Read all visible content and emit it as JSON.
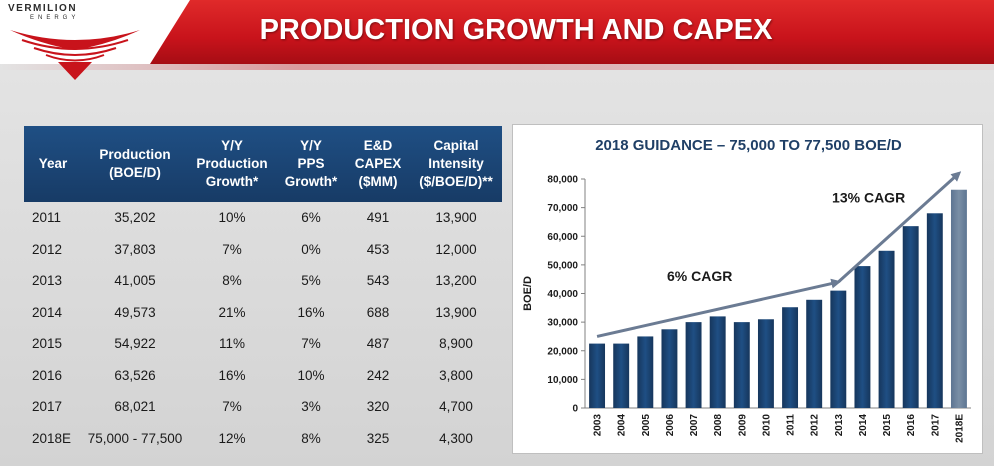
{
  "header": {
    "logo_line1": "VERMILION",
    "logo_line2": "ENERGY",
    "title": "PRODUCTION GROWTH AND CAPEX"
  },
  "table": {
    "columns": [
      "Year",
      "Production\n(BOE/D)",
      "Y/Y\nProduction\nGrowth*",
      "Y/Y\nPPS\nGrowth*",
      "E&D\nCAPEX\n($MM)",
      "Capital\nIntensity\n($/BOE/D)**"
    ],
    "rows": [
      [
        "2011",
        "35,202",
        "10%",
        "6%",
        "491",
        "13,900"
      ],
      [
        "2012",
        "37,803",
        "7%",
        "0%",
        "453",
        "12,000"
      ],
      [
        "2013",
        "41,005",
        "8%",
        "5%",
        "543",
        "13,200"
      ],
      [
        "2014",
        "49,573",
        "21%",
        "16%",
        "688",
        "13,900"
      ],
      [
        "2015",
        "54,922",
        "11%",
        "7%",
        "487",
        "8,900"
      ],
      [
        "2016",
        "63,526",
        "16%",
        "10%",
        "242",
        "3,800"
      ],
      [
        "2017",
        "68,021",
        "7%",
        "3%",
        "320",
        "4,700"
      ],
      [
        "2018E",
        "75,000 - 77,500",
        "12%",
        "8%",
        "325",
        "4,300"
      ]
    ]
  },
  "colors": {
    "header_red": "#c8131b",
    "table_header_blue": "#1f4f84",
    "bar_blue": "#1f4f84",
    "bar_estimate": "#7a8fa6",
    "arrow_gray": "#6b7b93",
    "chart_title": "#1f3f66"
  },
  "chart_data": {
    "type": "bar",
    "title": "2018 GUIDANCE – 75,000 TO 77,500 BOE/D",
    "xlabel": "",
    "ylabel": "BOE/D",
    "ylim": [
      0,
      80000
    ],
    "yticks": [
      0,
      10000,
      20000,
      30000,
      40000,
      50000,
      60000,
      70000,
      80000
    ],
    "ytick_labels": [
      "0",
      "10,000",
      "20,000",
      "30,000",
      "40,000",
      "50,000",
      "60,000",
      "70,000",
      "80,000"
    ],
    "categories": [
      "2003",
      "2004",
      "2005",
      "2006",
      "2007",
      "2008",
      "2009",
      "2010",
      "2011",
      "2012",
      "2013",
      "2014",
      "2015",
      "2016",
      "2017",
      "2018E"
    ],
    "values": [
      22500,
      22500,
      25000,
      27500,
      30000,
      32000,
      30000,
      31000,
      35202,
      37803,
      41005,
      49573,
      54922,
      63526,
      68021,
      76250
    ],
    "estimate_category": "2018E",
    "grid": false,
    "annotations": [
      {
        "text": "6% CAGR",
        "from": "2003",
        "to": "2013",
        "y_from": 25000,
        "y_to": 44000
      },
      {
        "text": "13% CAGR",
        "from": "2013",
        "to": "2018E",
        "y_from": 44000,
        "y_to": 82000
      }
    ]
  }
}
